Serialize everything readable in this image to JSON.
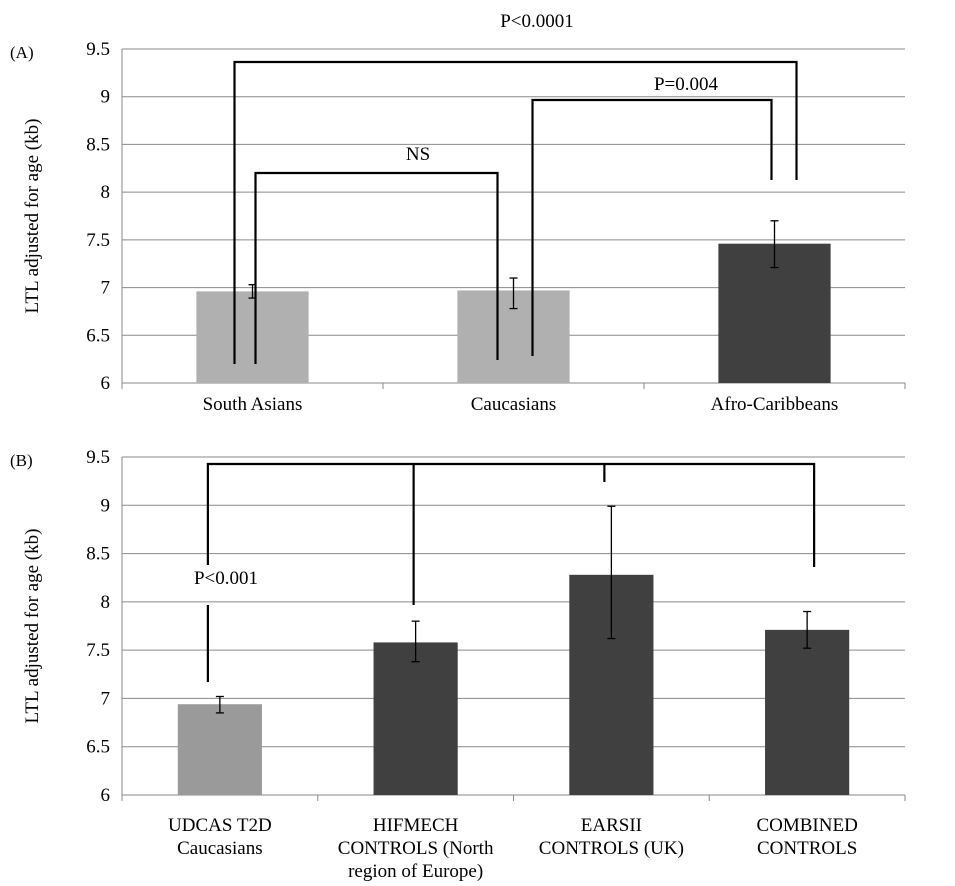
{
  "chart_data": [
    {
      "panel_label": "(A)",
      "type": "bar",
      "categories": [
        "South Asians",
        "Caucasians",
        "Afro-Caribbeans"
      ],
      "values": [
        6.96,
        6.97,
        7.46
      ],
      "error_low": [
        6.89,
        6.78,
        7.21
      ],
      "error_high": [
        7.03,
        7.1,
        7.7
      ],
      "bar_colors": [
        "#b0b0b0",
        "#b0b0b0",
        "#404040"
      ],
      "ylabel": "LTL adjusted for age (kb)",
      "ylim": [
        6,
        9.5
      ],
      "yticks": [
        "6",
        "6.5",
        "7",
        "7.5",
        "8",
        "8.5",
        "9",
        "9.5"
      ],
      "grid": true,
      "annotations": [
        "P<0.0001",
        "P=0.004",
        "NS"
      ]
    },
    {
      "panel_label": "(B)",
      "type": "bar",
      "categories": [
        [
          "UDCAS T2D",
          "Caucasians"
        ],
        [
          "HIFMECH",
          "CONTROLS (North",
          "region of Europe)"
        ],
        [
          "EARSII",
          "CONTROLS (UK)"
        ],
        [
          "COMBINED",
          "CONTROLS"
        ]
      ],
      "values": [
        6.94,
        7.58,
        8.28,
        7.71
      ],
      "error_low": [
        6.85,
        7.38,
        7.62,
        7.52
      ],
      "error_high": [
        7.02,
        7.8,
        8.99,
        7.9
      ],
      "bar_colors": [
        "#9a9a9a",
        "#404040",
        "#404040",
        "#404040"
      ],
      "ylabel": "LTL adjusted for age (kb)",
      "ylim": [
        6,
        9.5
      ],
      "yticks": [
        "6",
        "6.5",
        "7",
        "7.5",
        "8",
        "8.5",
        "9",
        "9.5"
      ],
      "grid": true,
      "annotations": [
        "P<0.001"
      ]
    }
  ]
}
